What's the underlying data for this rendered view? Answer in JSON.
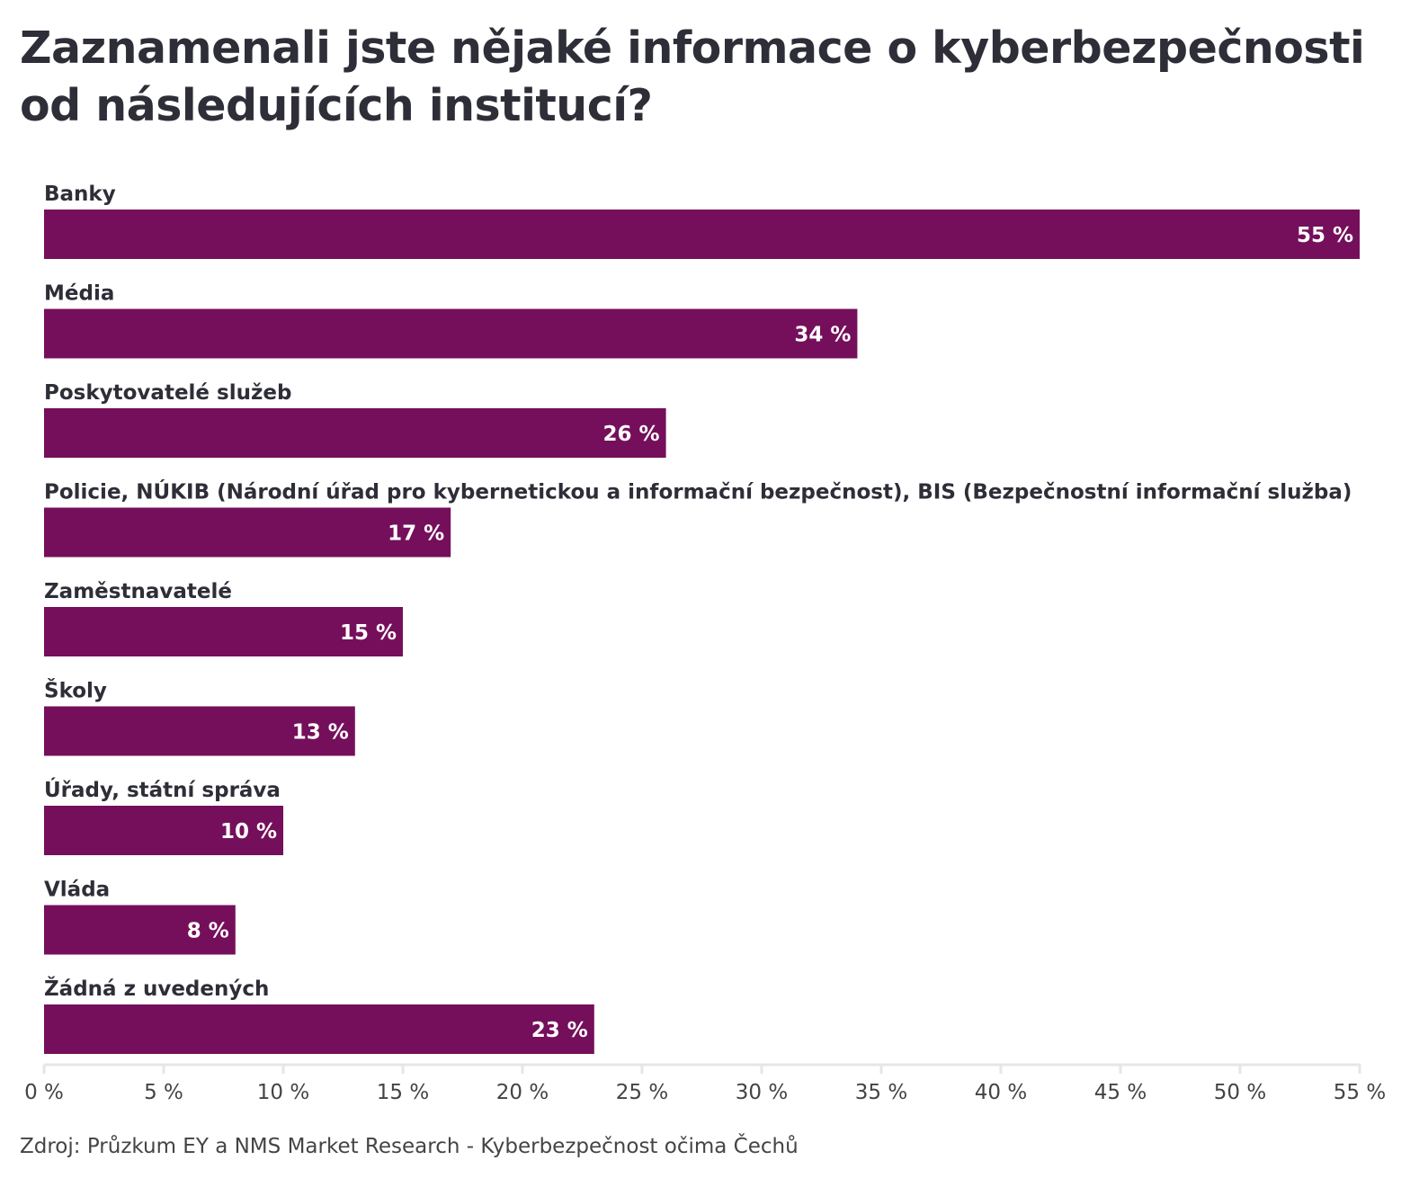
{
  "title": "Zaznamenali jste nějaké informace o kyberbezpečnosti od následujících institucí?",
  "source": "Zdroj: Průzkum EY a NMS Market Research - Kyberbezpečnost očima Čechů",
  "chart_data": {
    "type": "bar",
    "orientation": "horizontal",
    "title": "Zaznamenali jste nějaké informace o kyberbezpečnosti od následujících institucí?",
    "categories": [
      "Banky",
      "Média",
      "Poskytovatelé služeb",
      "Policie, NÚKIB (Národní úřad pro kybernetickou a informační bezpečnost), BIS (Bezpečnostní informační služba)",
      "Zaměstnavatelé",
      "Školy",
      "Úřady, státní správa",
      "Vláda",
      "Žádná z uvedených"
    ],
    "values": [
      55,
      34,
      26,
      17,
      15,
      13,
      10,
      8,
      23
    ],
    "value_labels": [
      "55 %",
      "34 %",
      "26 %",
      "17 %",
      "15 %",
      "13 %",
      "10 %",
      "8 %",
      "23 %"
    ],
    "xlim": [
      0,
      55
    ],
    "xticks": [
      0,
      5,
      10,
      15,
      20,
      25,
      30,
      35,
      40,
      45,
      50,
      55
    ],
    "xtick_labels": [
      "0 %",
      "5 %",
      "10 %",
      "15 %",
      "20 %",
      "25 %",
      "30 %",
      "35 %",
      "40 %",
      "45 %",
      "50 %",
      "55 %"
    ],
    "grid": false,
    "legend": "none",
    "bar_color": "#750f5b",
    "axis_color": "#e6e6e6"
  }
}
